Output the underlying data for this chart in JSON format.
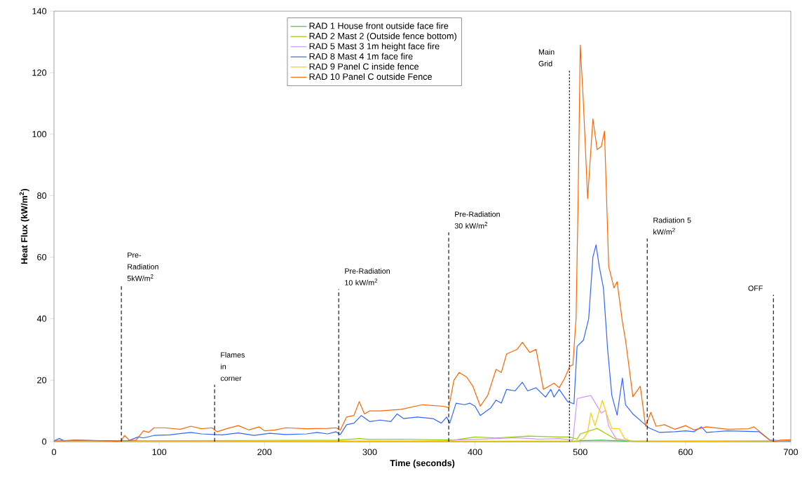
{
  "chart_data": {
    "type": "line",
    "xlabel": "Time (seconds)",
    "ylabel": "Heat Flux (kW/m$^{2}$)",
    "xlim": [
      0,
      700
    ],
    "xticks": [
      0,
      100,
      200,
      300,
      400,
      500,
      600,
      700
    ],
    "ylim": [
      0,
      140
    ],
    "yticks": [
      0,
      20,
      40,
      60,
      80,
      100,
      120,
      140
    ],
    "grid": false,
    "legend": "top",
    "marker": "none",
    "line_style": "solid",
    "series": [
      {
        "name": "RAD 1 House front outside face fire",
        "color": "#33cc33",
        "x": [
          0,
          490,
          500,
          520,
          540,
          560,
          700
        ],
        "values": [
          0,
          0,
          0.3,
          0.5,
          0.2,
          0,
          0
        ]
      },
      {
        "name": "RAD 2 Mast 2 (Outside fence bottom)",
        "color": "#99cc00",
        "x": [
          0,
          100,
          200,
          270,
          290,
          300,
          330,
          380,
          400,
          420,
          450,
          480,
          490,
          497,
          500,
          516,
          525,
          535,
          550,
          700
        ],
        "values": [
          0.2,
          0.3,
          0.4,
          0.5,
          1,
          0.7,
          0.8,
          0.5,
          1.5,
          1.2,
          1.8,
          1.5,
          1.5,
          0.8,
          2.5,
          4.3,
          2.5,
          0.5,
          0.2,
          0.2
        ]
      },
      {
        "name": "RAD 5 Mast 3 1m height face fire",
        "color": "#cc99ff",
        "x": [
          0,
          370,
          380,
          420,
          440,
          460,
          480,
          493,
          497,
          503,
          510,
          520,
          524,
          527,
          534,
          550,
          700
        ],
        "values": [
          0.2,
          0.2,
          0.5,
          1,
          1.3,
          0.8,
          1,
          0.5,
          14,
          14.5,
          15,
          9.3,
          10.2,
          5,
          1,
          0,
          0
        ]
      },
      {
        "name": "RAD 8 Mast 4 1m face fire",
        "color": "#3366ff",
        "x": [
          0,
          5,
          10,
          20,
          60,
          70,
          80,
          85,
          95,
          110,
          130,
          140,
          160,
          175,
          190,
          205,
          220,
          240,
          250,
          260,
          268,
          272,
          278,
          285,
          292,
          300,
          310,
          320,
          326,
          332,
          345,
          360,
          368,
          373,
          376,
          382,
          390,
          395,
          400,
          405,
          415,
          420,
          425,
          430,
          438,
          445,
          450,
          458,
          467,
          472,
          475,
          480,
          488,
          494,
          497,
          503,
          508,
          512,
          515,
          518,
          522,
          526,
          530,
          535,
          540,
          543,
          550,
          560,
          565,
          575,
          590,
          600,
          608,
          615,
          620,
          640,
          670,
          680,
          690,
          700
        ],
        "values": [
          0.3,
          1,
          0.2,
          0.5,
          0.2,
          0.2,
          1.5,
          1.2,
          2,
          2.2,
          3,
          2.5,
          2.2,
          2.8,
          2,
          2.7,
          2.3,
          2.5,
          3,
          2.5,
          3.2,
          2.3,
          5.5,
          6,
          8.5,
          6.5,
          7,
          6.5,
          9,
          7.5,
          8,
          7.5,
          6,
          8,
          6,
          12.5,
          12,
          12.5,
          11.5,
          8.5,
          11,
          13.5,
          12.5,
          17,
          16.5,
          19.3,
          16.5,
          17.5,
          14.5,
          17,
          14.5,
          17,
          13,
          12.3,
          31,
          33,
          40,
          60,
          64,
          57,
          50,
          30,
          15,
          8.6,
          20.7,
          12,
          9,
          6,
          4.5,
          3,
          3.2,
          3.5,
          3.2,
          4.8,
          3,
          3.5,
          3.2,
          0.5,
          0.3,
          0.3
        ]
      },
      {
        "name": "RAD 9 Panel C inside fence",
        "color": "#ffcc00",
        "x": [
          0,
          497,
          503,
          507,
          510,
          514,
          521,
          525,
          530,
          537,
          542,
          550,
          690,
          700
        ],
        "values": [
          0,
          0.2,
          1,
          3,
          9.3,
          5.2,
          13.4,
          9,
          4.3,
          4.2,
          1,
          0,
          0.3,
          0.5
        ]
      },
      {
        "name": "RAD 10 Panel C outside Fence",
        "color": "#ff6600",
        "x": [
          0,
          20,
          40,
          55,
          60,
          64,
          67,
          72,
          78,
          85,
          90,
          95,
          105,
          120,
          130,
          140,
          150,
          155,
          165,
          175,
          185,
          195,
          200,
          210,
          220,
          240,
          260,
          268,
          272,
          278,
          285,
          290,
          295,
          300,
          310,
          330,
          350,
          370,
          375,
          380,
          385,
          392,
          398,
          405,
          412,
          420,
          425,
          430,
          440,
          445,
          452,
          458,
          465,
          470,
          475,
          480,
          485,
          490,
          493,
          496,
          498,
          500,
          503,
          507,
          512,
          516,
          520,
          523,
          527,
          532,
          535,
          540,
          543,
          550,
          557,
          562,
          567,
          572,
          580,
          590,
          600,
          608,
          620,
          640,
          660,
          665,
          680,
          685,
          690,
          700
        ],
        "values": [
          0.2,
          0.5,
          0.3,
          0.2,
          0,
          0.3,
          2,
          0.3,
          0.5,
          3.5,
          3,
          4.5,
          4.5,
          4,
          5,
          4.2,
          4.5,
          3.2,
          4.3,
          5.2,
          3.8,
          4.8,
          3.5,
          3.8,
          4.5,
          4.2,
          4.3,
          4.5,
          3.7,
          8,
          8.5,
          13,
          9,
          10,
          10,
          10.5,
          12,
          11.5,
          11,
          20,
          22.5,
          21,
          18,
          11.5,
          15,
          23.5,
          22.5,
          28.5,
          30,
          32.3,
          29,
          30,
          17,
          18,
          19,
          17.5,
          20.5,
          24.5,
          25,
          40,
          80,
          129,
          110,
          79,
          105,
          95,
          96,
          101,
          57,
          50,
          52,
          39,
          33,
          14.6,
          18,
          5,
          9.5,
          5,
          5.5,
          4,
          5.2,
          3.8,
          4.8,
          4,
          4.2,
          4.8,
          0.5,
          0,
          0.5,
          0.6
        ]
      }
    ],
    "ref_lines": [
      {
        "axis": "x",
        "value": 64,
        "label": "Pre-Radiation 5kW/m$^{2}$",
        "color": "#000000",
        "line_style": "dashed"
      },
      {
        "axis": "x",
        "value": 152.6,
        "label": "Flames in corner",
        "color": "#000000",
        "line_style": "dashed"
      },
      {
        "axis": "x",
        "value": 270.5,
        "label": "Pre-Radiation 10 kW/m$^{2}$",
        "color": "#000000",
        "line_style": "dashed"
      },
      {
        "axis": "x",
        "value": 375,
        "label": "Pre-Radiation 30 kW/m$^{2}$",
        "color": "#000000",
        "line_style": "dashed"
      },
      {
        "axis": "x",
        "value": 489.7,
        "label": "Main Grid",
        "color": "#000000",
        "line_style": "dotted"
      },
      {
        "axis": "x",
        "value": 563.6,
        "label": "Radiation 5 kW/m$^{2}$",
        "color": "#000000",
        "line_style": "dashed"
      },
      {
        "axis": "x",
        "value": 683.5,
        "label": "OFF",
        "color": "#000000",
        "line_style": "dashed"
      }
    ]
  }
}
